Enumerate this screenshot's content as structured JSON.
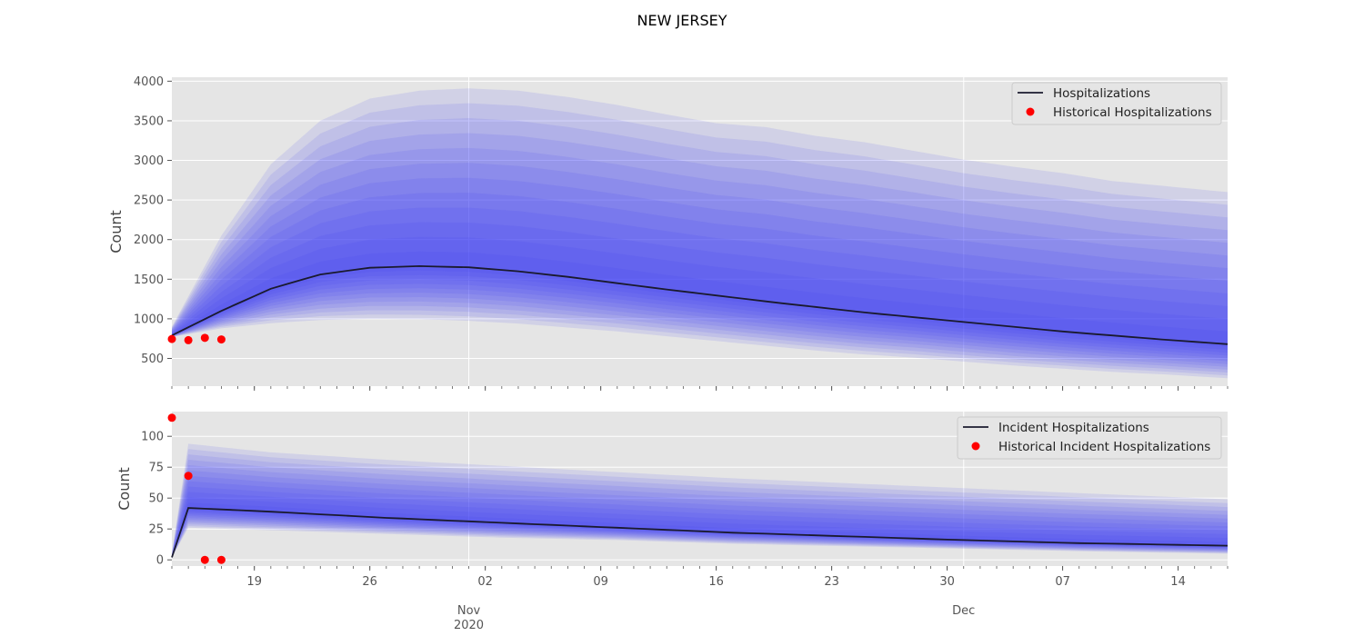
{
  "title": "NEW JERSEY",
  "chart_data": [
    {
      "type": "line",
      "ylabel": "Count",
      "x_range": [
        "2020-10-14",
        "2020-12-17"
      ],
      "ylim": [
        150,
        4050
      ],
      "yticks": [
        500,
        1000,
        1500,
        2000,
        2500,
        3000,
        3500,
        4000
      ],
      "grid": true,
      "legend_position": "top-right",
      "band_color": "#3a3af5",
      "line_color": "#1a1a2e",
      "point_color": "#ff0000",
      "background": "#e5e5e5",
      "median": {
        "name": "Hospitalizations",
        "x": [
          "2020-10-14",
          "2020-10-17",
          "2020-10-20",
          "2020-10-23",
          "2020-10-26",
          "2020-10-29",
          "2020-11-01",
          "2020-11-04",
          "2020-11-07",
          "2020-11-10",
          "2020-11-13",
          "2020-11-16",
          "2020-11-19",
          "2020-11-22",
          "2020-11-25",
          "2020-11-28",
          "2020-12-01",
          "2020-12-04",
          "2020-12-07",
          "2020-12-10",
          "2020-12-13",
          "2020-12-17"
        ],
        "y": [
          790,
          1100,
          1380,
          1560,
          1645,
          1665,
          1650,
          1600,
          1530,
          1450,
          1370,
          1295,
          1220,
          1150,
          1080,
          1020,
          960,
          900,
          840,
          790,
          740,
          680
        ]
      },
      "band_outer": {
        "upper": [
          900,
          2050,
          2950,
          3500,
          3780,
          3880,
          3910,
          3880,
          3800,
          3700,
          3580,
          3470,
          3420,
          3310,
          3230,
          3120,
          3010,
          2920,
          2840,
          2740,
          2680,
          2600
        ],
        "lower": [
          770,
          880,
          945,
          985,
          1000,
          995,
          975,
          940,
          890,
          840,
          780,
          720,
          660,
          600,
          550,
          510,
          460,
          410,
          370,
          330,
          300,
          250
        ]
      },
      "band_count": 12,
      "historical": {
        "name": "Historical Hospitalizations",
        "x": [
          "2020-10-14",
          "2020-10-15",
          "2020-10-16",
          "2020-10-17"
        ],
        "y": [
          745,
          730,
          760,
          740
        ]
      }
    },
    {
      "type": "line",
      "ylabel": "Count",
      "x_range": [
        "2020-10-14",
        "2020-12-17"
      ],
      "ylim": [
        -5,
        120
      ],
      "yticks": [
        0,
        25,
        50,
        75,
        100
      ],
      "grid": true,
      "legend_position": "top-right",
      "median": {
        "name": "Incident Hospitalizations",
        "x": [
          "2020-10-14",
          "2020-10-15",
          "2020-10-20",
          "2020-10-27",
          "2020-11-03",
          "2020-11-10",
          "2020-11-17",
          "2020-11-24",
          "2020-12-01",
          "2020-12-08",
          "2020-12-17"
        ],
        "y": [
          2,
          42,
          39,
          34,
          30,
          26,
          22,
          19,
          16,
          13.5,
          11.5
        ]
      },
      "band_outer": {
        "upper": [
          5,
          94,
          87,
          81,
          76,
          71,
          66,
          62,
          58,
          54,
          49
        ],
        "lower": [
          2,
          26,
          24,
          21,
          18,
          16,
          13,
          11,
          9,
          7,
          5
        ]
      },
      "band_count": 12,
      "historical": {
        "name": "Historical Incident Hospitalizations",
        "x": [
          "2020-10-14",
          "2020-10-15",
          "2020-10-16",
          "2020-10-17"
        ],
        "y": [
          115,
          68,
          0,
          0
        ]
      }
    }
  ],
  "x_axis": {
    "day_ticks": [
      {
        "date": "2020-10-19",
        "label": "19"
      },
      {
        "date": "2020-10-26",
        "label": "26"
      },
      {
        "date": "2020-11-02",
        "label": "02"
      },
      {
        "date": "2020-11-09",
        "label": "09"
      },
      {
        "date": "2020-11-16",
        "label": "16"
      },
      {
        "date": "2020-11-23",
        "label": "23"
      },
      {
        "date": "2020-11-30",
        "label": "30"
      },
      {
        "date": "2020-12-07",
        "label": "07"
      },
      {
        "date": "2020-12-14",
        "label": "14"
      }
    ],
    "month_ticks": [
      {
        "date": "2020-11-01",
        "label": "Nov",
        "year": "2020"
      },
      {
        "date": "2020-12-01",
        "label": "Dec",
        "year": ""
      }
    ]
  }
}
